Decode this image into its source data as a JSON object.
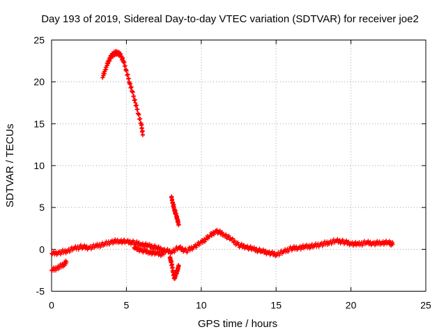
{
  "chart_data": {
    "type": "scatter",
    "title": "Day 193 of 2019, Sidereal Day-to-day VTEC variation (SDTVAR) for receiver joe2",
    "xlabel": "GPS time / hours",
    "ylabel": "SDTVAR / TECUs",
    "xlim": [
      0,
      25
    ],
    "ylim": [
      -5,
      25
    ],
    "xticks": [
      0,
      5,
      10,
      15,
      20,
      25
    ],
    "yticks": [
      -5,
      0,
      5,
      10,
      15,
      20,
      25
    ],
    "xtick_labels": [
      "0",
      "5",
      "10",
      "15",
      "20",
      "25"
    ],
    "ytick_labels": [
      "-5",
      "0",
      "5",
      "10",
      "15",
      "20",
      "25"
    ],
    "grid": true,
    "marker": "+",
    "color": "#ff0000",
    "series": [
      {
        "name": "main_band",
        "x": [
          0.0,
          0.5,
          1.0,
          1.5,
          2.0,
          2.5,
          3.0,
          3.5,
          4.0,
          4.5,
          5.0,
          5.5,
          6.0,
          6.5,
          7.0,
          7.5,
          8.0,
          8.5,
          9.0,
          9.5,
          10.0,
          10.5,
          11.0,
          11.5,
          12.0,
          12.5,
          13.0,
          13.5,
          14.0,
          14.5,
          15.0,
          15.5,
          16.0,
          16.5,
          17.0,
          17.5,
          18.0,
          18.5,
          19.0,
          19.5,
          20.0,
          20.5,
          21.0,
          21.5,
          22.0,
          22.5,
          22.8
        ],
        "y": [
          -0.5,
          -0.4,
          -0.2,
          0.1,
          0.3,
          0.2,
          0.4,
          0.6,
          0.9,
          1.0,
          0.9,
          0.8,
          0.6,
          0.4,
          0.2,
          -0.1,
          -0.3,
          0.2,
          -0.2,
          0.3,
          0.8,
          1.5,
          2.2,
          1.8,
          1.2,
          0.5,
          0.3,
          0.0,
          -0.2,
          -0.4,
          -0.6,
          -0.3,
          0.1,
          0.2,
          0.3,
          0.4,
          0.6,
          0.8,
          1.0,
          0.9,
          0.7,
          0.6,
          0.8,
          0.7,
          0.8,
          0.8,
          0.6
        ]
      },
      {
        "name": "lower_tail",
        "x": [
          0.0,
          0.4,
          0.8,
          1.0
        ],
        "y": [
          -2.5,
          -2.2,
          -1.8,
          -1.5
        ]
      },
      {
        "name": "evening_hump",
        "x": [
          5.5,
          6.0,
          6.5,
          7.0,
          7.5
        ],
        "y": [
          0.2,
          -0.1,
          -0.3,
          -0.5,
          -0.6
        ]
      },
      {
        "name": "upper_arc",
        "x": [
          3.4,
          3.6,
          3.8,
          4.0,
          4.2,
          4.4,
          4.6,
          4.8,
          5.0,
          5.2,
          5.4,
          5.6,
          5.8,
          6.0,
          6.1
        ],
        "y": [
          20.5,
          21.5,
          22.5,
          23.1,
          23.4,
          23.5,
          23.2,
          22.5,
          21.3,
          20.0,
          18.8,
          17.5,
          16.2,
          14.8,
          13.7
        ]
      },
      {
        "name": "spike_upper",
        "x": [
          8.0,
          8.1,
          8.2,
          8.3,
          8.4,
          8.5
        ],
        "y": [
          6.3,
          5.5,
          4.8,
          4.2,
          3.6,
          3.0
        ]
      },
      {
        "name": "spike_lower",
        "x": [
          7.9,
          8.0,
          8.1,
          8.2,
          8.3,
          8.4,
          8.5
        ],
        "y": [
          -1.0,
          -1.5,
          -2.5,
          -3.5,
          -3.0,
          -2.5,
          -2.0
        ]
      }
    ]
  }
}
